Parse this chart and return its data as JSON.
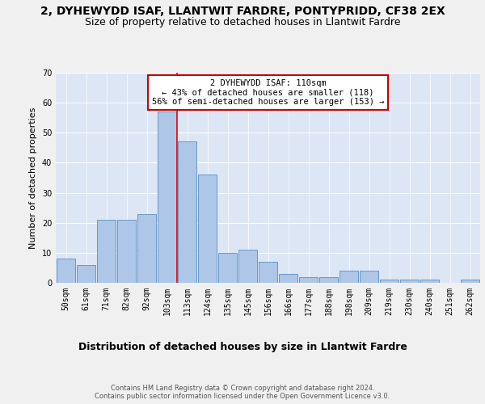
{
  "title": "2, DYHEWYDD ISAF, LLANTWIT FARDRE, PONTYPRIDD, CF38 2EX",
  "subtitle": "Size of property relative to detached houses in Llantwit Fardre",
  "xlabel": "Distribution of detached houses by size in Llantwit Fardre",
  "ylabel": "Number of detached properties",
  "categories": [
    "50sqm",
    "61sqm",
    "71sqm",
    "82sqm",
    "92sqm",
    "103sqm",
    "113sqm",
    "124sqm",
    "135sqm",
    "145sqm",
    "156sqm",
    "166sqm",
    "177sqm",
    "188sqm",
    "198sqm",
    "209sqm",
    "219sqm",
    "230sqm",
    "240sqm",
    "251sqm",
    "262sqm"
  ],
  "values": [
    8,
    6,
    21,
    21,
    23,
    57,
    47,
    36,
    10,
    11,
    7,
    3,
    2,
    2,
    4,
    4,
    1,
    1,
    1,
    0,
    1
  ],
  "bar_color": "#aec6e8",
  "bar_edge_color": "#5a8fc0",
  "red_line_x": 5.5,
  "annotation_text": "2 DYHEWYDD ISAF: 110sqm\n← 43% of detached houses are smaller (118)\n56% of semi-detached houses are larger (153) →",
  "annotation_box_color": "#ffffff",
  "annotation_box_edge": "#cc0000",
  "ylim": [
    0,
    70
  ],
  "yticks": [
    0,
    10,
    20,
    30,
    40,
    50,
    60,
    70
  ],
  "background_color": "#dce6f5",
  "grid_color": "#ffffff",
  "fig_background": "#f0f0f0",
  "footer": "Contains HM Land Registry data © Crown copyright and database right 2024.\nContains public sector information licensed under the Open Government Licence v3.0.",
  "title_fontsize": 10,
  "subtitle_fontsize": 9,
  "xlabel_fontsize": 9,
  "ylabel_fontsize": 8,
  "tick_fontsize": 7,
  "annotation_fontsize": 7.5,
  "footer_fontsize": 6
}
